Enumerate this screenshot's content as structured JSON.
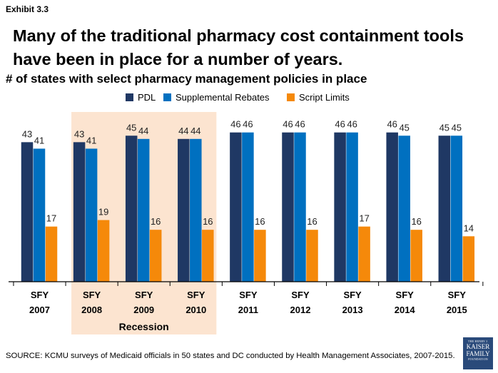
{
  "exhibit_label": "Exhibit 3.3",
  "title": "Many of the traditional pharmacy cost containment tools have been in place for a number of years.",
  "subtitle": "# of states with select pharmacy management policies in place",
  "legend": [
    {
      "name": "PDL",
      "color": "#1f3864"
    },
    {
      "name": "Supplemental Rebates",
      "color": "#0070c0"
    },
    {
      "name": "Script Limits",
      "color": "#f5890a"
    }
  ],
  "recession": {
    "label": "Recession",
    "color": "#fce4d0",
    "categories": [
      "SFY 2008",
      "SFY 2009",
      "SFY 2010"
    ]
  },
  "source": "SOURCE: KCMU surveys of Medicaid officials in 50 states and DC conducted by Health Management Associates, 2007-2015.",
  "logo": {
    "line1": "THE HENRY J.",
    "line2": "KAISER",
    "line3": "FAMILY",
    "line4": "FOUNDATION"
  },
  "chart_data": {
    "type": "bar",
    "categories": [
      [
        "SFY",
        "2007"
      ],
      [
        "SFY",
        "2008"
      ],
      [
        "SFY",
        "2009"
      ],
      [
        "SFY",
        "2010"
      ],
      [
        "SFY",
        "2011"
      ],
      [
        "SFY",
        "2012"
      ],
      [
        "SFY",
        "2013"
      ],
      [
        "SFY",
        "2014"
      ],
      [
        "SFY",
        "2015"
      ]
    ],
    "series": [
      {
        "name": "PDL",
        "color": "#1f3864",
        "values": [
          43,
          43,
          45,
          44,
          46,
          46,
          46,
          46,
          45
        ]
      },
      {
        "name": "Supplemental Rebates",
        "color": "#0070c0",
        "values": [
          41,
          41,
          44,
          44,
          46,
          46,
          46,
          45,
          45
        ]
      },
      {
        "name": "Script Limits",
        "color": "#f5890a",
        "values": [
          17,
          19,
          16,
          16,
          16,
          16,
          17,
          16,
          14
        ]
      }
    ],
    "ylim": [
      0,
      50
    ],
    "grid": false,
    "legend_position": "top"
  }
}
